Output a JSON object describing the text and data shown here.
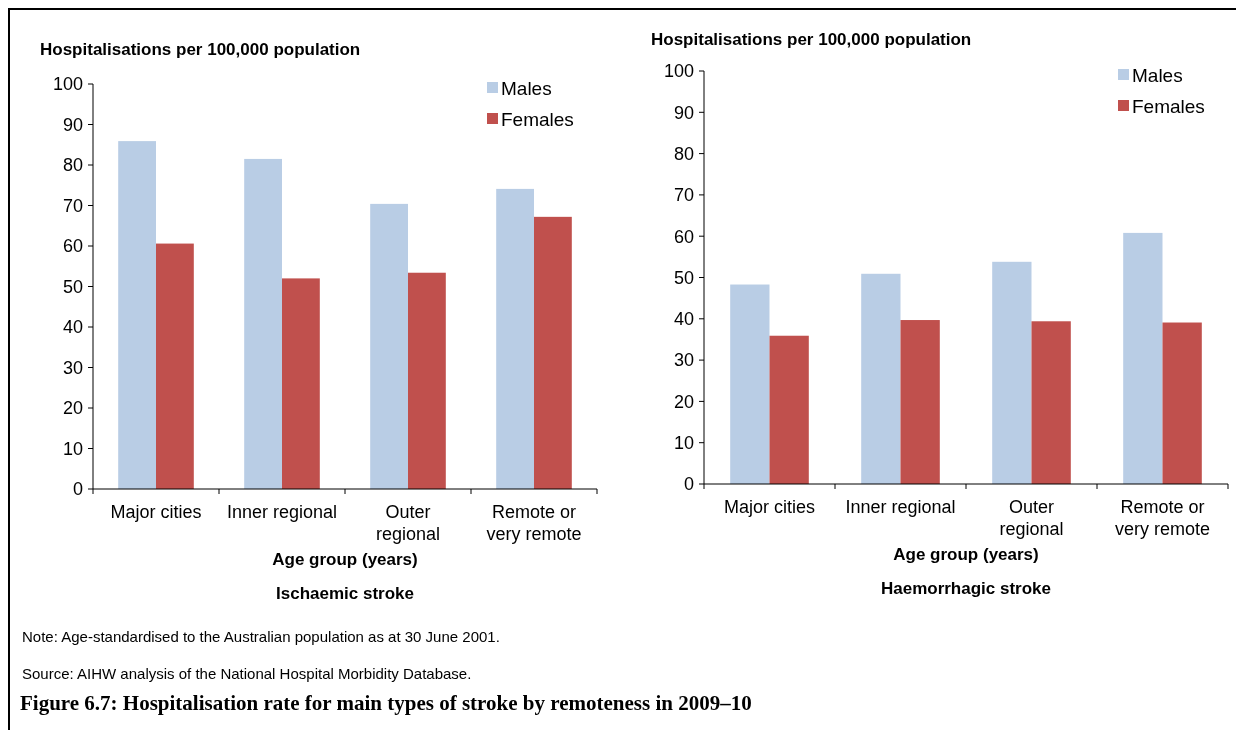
{
  "chart_data": [
    {
      "type": "bar",
      "title": "Ischaemic stroke",
      "xlabel": "Age group (years)",
      "ylabel": "Hospitalisations per 100,000 population",
      "categories": [
        "Major cities",
        "Inner regional",
        "Outer\nregional",
        "Remote or\nvery remote"
      ],
      "series": [
        {
          "name": "Males",
          "color": "#b9cde5",
          "values": [
            85.9,
            81.5,
            70.4,
            74.1
          ]
        },
        {
          "name": "Females",
          "color": "#c0504d",
          "values": [
            60.6,
            52.0,
            53.4,
            67.2
          ]
        }
      ],
      "ylim": [
        0,
        100
      ],
      "yticks": [
        0,
        10,
        20,
        30,
        40,
        50,
        60,
        70,
        80,
        90,
        100
      ],
      "legend": "top right",
      "annotations": [
        "Note: Age-standardised to the Australian population as at 30 June 2001.",
        "Source: AIHW analysis of the National Hospital Morbidity Database.",
        "Figure 6.7: Hospitalisation rate for main types of stroke by remoteness in 2009–10"
      ]
    },
    {
      "type": "bar",
      "title": "Haemorrhagic stroke",
      "xlabel": "Age group (years)",
      "ylabel": "Hospitalisations per 100,000 population",
      "categories": [
        "Major cities",
        "Inner regional",
        "Outer\nregional",
        "Remote or\nvery remote"
      ],
      "series": [
        {
          "name": "Males",
          "color": "#b9cde5",
          "values": [
            48.3,
            50.9,
            53.8,
            60.8
          ]
        },
        {
          "name": "Females",
          "color": "#c0504d",
          "values": [
            35.9,
            39.7,
            39.4,
            39.1
          ]
        }
      ],
      "ylim": [
        0,
        100
      ],
      "yticks": [
        0,
        10,
        20,
        30,
        40,
        50,
        60,
        70,
        80,
        90,
        100
      ],
      "legend": "top right"
    }
  ]
}
